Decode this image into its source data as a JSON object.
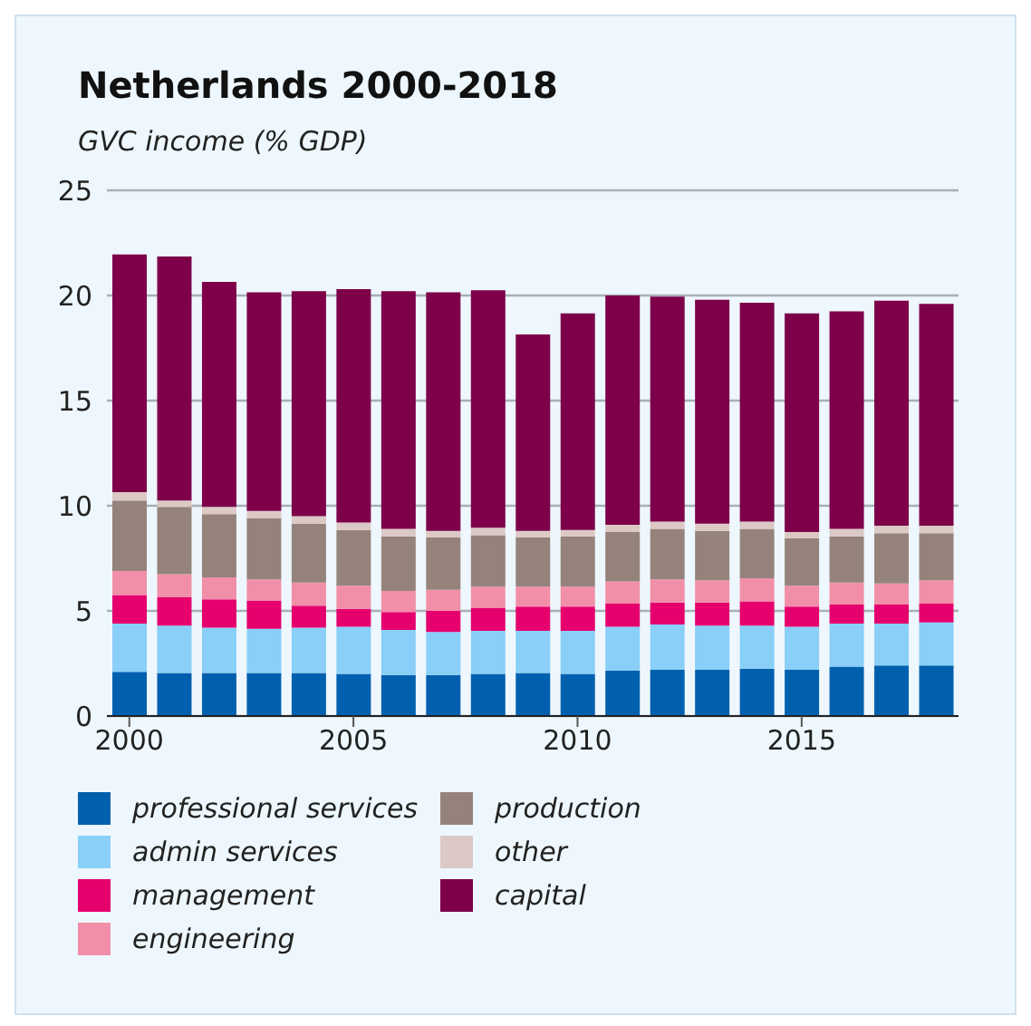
{
  "chart_data": {
    "type": "bar",
    "title": "Netherlands 2000-2018",
    "ylabel": "GVC income (% GDP)",
    "stacked": true,
    "x": [
      2000,
      2001,
      2002,
      2003,
      2004,
      2005,
      2006,
      2007,
      2008,
      2009,
      2010,
      2011,
      2012,
      2013,
      2014,
      2015,
      2016,
      2017,
      2018
    ],
    "xlim": [
      1999.5,
      2018.5
    ],
    "xticks": [
      2000,
      2005,
      2010,
      2015
    ],
    "ylim": [
      0,
      25
    ],
    "yticks": [
      0,
      5,
      10,
      15,
      20,
      25
    ],
    "grid": "y",
    "legend": "bottom",
    "series": [
      {
        "name": "professional services",
        "color": "#0060ae",
        "values": [
          2.1,
          2.05,
          2.05,
          2.05,
          2.05,
          2.0,
          1.95,
          1.95,
          2.0,
          2.05,
          2.0,
          2.15,
          2.2,
          2.2,
          2.25,
          2.2,
          2.35,
          2.4,
          2.4
        ]
      },
      {
        "name": "admin services",
        "color": "#89cff8",
        "values": [
          2.3,
          2.25,
          2.15,
          2.1,
          2.15,
          2.25,
          2.15,
          2.05,
          2.05,
          2.0,
          2.05,
          2.1,
          2.15,
          2.1,
          2.05,
          2.05,
          2.05,
          2.0,
          2.05
        ]
      },
      {
        "name": "management",
        "color": "#e5006e",
        "values": [
          1.35,
          1.35,
          1.35,
          1.35,
          1.05,
          0.85,
          0.85,
          1.0,
          1.1,
          1.15,
          1.15,
          1.1,
          1.05,
          1.1,
          1.15,
          0.95,
          0.9,
          0.9,
          0.9
        ]
      },
      {
        "name": "engineering",
        "color": "#f28fa8",
        "values": [
          1.15,
          1.1,
          1.05,
          1.0,
          1.1,
          1.1,
          1.0,
          1.0,
          1.0,
          0.95,
          0.95,
          1.05,
          1.1,
          1.05,
          1.1,
          1.0,
          1.05,
          1.0,
          1.1
        ]
      },
      {
        "name": "production",
        "color": "#95837b",
        "values": [
          3.35,
          3.2,
          3.0,
          2.9,
          2.8,
          2.65,
          2.6,
          2.5,
          2.45,
          2.35,
          2.4,
          2.35,
          2.4,
          2.35,
          2.35,
          2.25,
          2.2,
          2.4,
          2.25
        ]
      },
      {
        "name": "other",
        "color": "#dcc9c6",
        "values": [
          0.4,
          0.3,
          0.35,
          0.35,
          0.35,
          0.35,
          0.35,
          0.3,
          0.35,
          0.3,
          0.3,
          0.35,
          0.35,
          0.35,
          0.35,
          0.3,
          0.35,
          0.35,
          0.35
        ]
      },
      {
        "name": "capital",
        "color": "#7d0049",
        "values": [
          11.3,
          11.6,
          10.7,
          10.4,
          10.7,
          11.1,
          11.3,
          11.35,
          11.3,
          9.35,
          10.3,
          10.9,
          10.7,
          10.65,
          10.4,
          10.4,
          10.35,
          10.7,
          10.55
        ]
      }
    ]
  }
}
